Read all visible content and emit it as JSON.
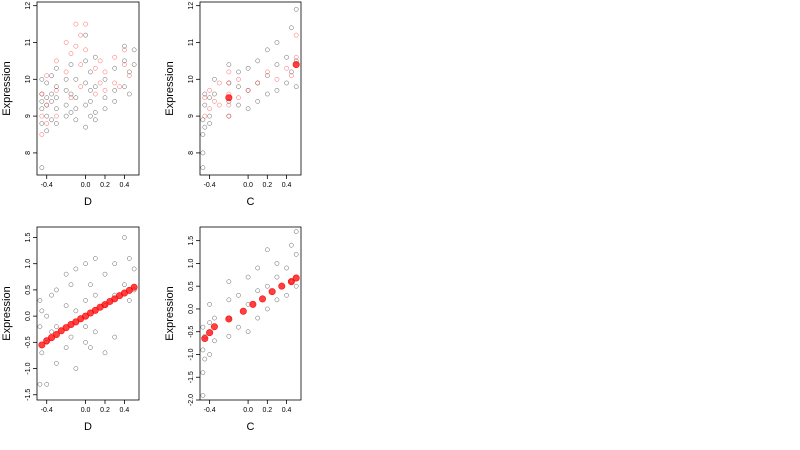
{
  "colors": {
    "points": "#000000",
    "highlight": "#ff0000",
    "background": "#ffffff"
  },
  "chart_data": [
    {
      "id": "top-left",
      "type": "scatter",
      "xlabel": "D",
      "ylabel": "Expression",
      "xlim": [
        -0.5,
        0.55
      ],
      "ylim": [
        7.4,
        12.1
      ],
      "xticks": [
        -0.4,
        0.0,
        0.2,
        0.4
      ],
      "xtick_labels": [
        "-0.4",
        "0.0",
        "0.2",
        "0.4"
      ],
      "yticks": [
        8,
        9,
        10,
        11,
        12
      ],
      "ytick_labels": [
        "8",
        "9",
        "10",
        "11",
        "12"
      ],
      "grid": false,
      "legend": "none",
      "series": [
        {
          "color": "#000000",
          "style": "hollow-circle",
          "x": [
            -0.45,
            -0.45,
            -0.45,
            -0.45,
            -0.45,
            -0.45,
            -0.4,
            -0.4,
            -0.4,
            -0.4,
            -0.4,
            -0.35,
            -0.35,
            -0.35,
            -0.35,
            -0.3,
            -0.3,
            -0.3,
            -0.3,
            -0.3,
            -0.2,
            -0.2,
            -0.2,
            -0.2,
            -0.15,
            -0.15,
            -0.15,
            -0.1,
            -0.1,
            -0.1,
            -0.1,
            0.0,
            0.0,
            0.0,
            0.0,
            0.0,
            0.05,
            0.05,
            0.05,
            0.05,
            0.1,
            0.1,
            0.1,
            0.1,
            0.2,
            0.2,
            0.2,
            0.3,
            0.3,
            0.3,
            0.4,
            0.4,
            0.4,
            0.45,
            0.45,
            0.5,
            0.5
          ],
          "y": [
            7.6,
            8.8,
            9.2,
            9.6,
            10.0,
            9.4,
            9.0,
            9.5,
            9.9,
            8.6,
            9.3,
            10.1,
            9.6,
            8.9,
            9.4,
            9.2,
            9.8,
            10.3,
            8.8,
            9.5,
            9.3,
            10.0,
            9.0,
            9.7,
            10.4,
            9.1,
            9.6,
            9.5,
            10.0,
            8.9,
            9.2,
            9.9,
            10.5,
            9.3,
            8.7,
            11.2,
            9.0,
            9.7,
            10.2,
            9.4,
            9.1,
            9.8,
            10.6,
            8.9,
            9.5,
            10.0,
            9.2,
            9.7,
            10.3,
            9.4,
            10.5,
            9.8,
            10.9,
            10.2,
            9.6,
            10.4,
            10.8
          ]
        },
        {
          "color": "#ff0000",
          "style": "hollow-circle",
          "x": [
            -0.45,
            -0.45,
            -0.45,
            -0.4,
            -0.4,
            -0.4,
            -0.3,
            -0.3,
            -0.3,
            -0.2,
            -0.2,
            -0.15,
            -0.15,
            -0.1,
            -0.1,
            -0.05,
            -0.05,
            -0.05,
            0.0,
            0.0,
            0.1,
            0.1,
            0.15,
            0.15,
            0.2,
            0.2,
            0.3,
            0.3,
            0.35,
            0.4,
            0.4,
            0.45
          ],
          "y": [
            8.5,
            9.0,
            9.6,
            9.3,
            10.1,
            8.8,
            9.7,
            10.5,
            9.0,
            10.2,
            11.0,
            9.5,
            10.7,
            10.9,
            11.5,
            10.4,
            11.2,
            9.8,
            10.8,
            11.5,
            9.6,
            10.3,
            9.9,
            10.5,
            9.7,
            10.2,
            9.9,
            10.6,
            9.8,
            10.4,
            10.8,
            10.1
          ]
        }
      ]
    },
    {
      "id": "top-right",
      "type": "scatter",
      "xlabel": "C",
      "ylabel": "Expression",
      "xlim": [
        -0.5,
        0.55
      ],
      "ylim": [
        7.4,
        12.1
      ],
      "xticks": [
        -0.4,
        0.0,
        0.2,
        0.4
      ],
      "xtick_labels": [
        "-0.4",
        "0.0",
        "0.2",
        "0.4"
      ],
      "yticks": [
        8,
        9,
        10,
        11,
        12
      ],
      "ytick_labels": [
        "8",
        "9",
        "10",
        "11",
        "12"
      ],
      "grid": false,
      "legend": "none",
      "series": [
        {
          "color": "#000000",
          "style": "hollow-circle",
          "x": [
            -0.47,
            -0.47,
            -0.47,
            -0.47,
            -0.45,
            -0.45,
            -0.45,
            -0.4,
            -0.4,
            -0.4,
            -0.35,
            -0.35,
            -0.2,
            -0.2,
            -0.2,
            -0.2,
            -0.1,
            -0.1,
            -0.1,
            0.0,
            0.0,
            0.0,
            0.1,
            0.1,
            0.1,
            0.2,
            0.2,
            0.2,
            0.3,
            0.3,
            0.3,
            0.4,
            0.4,
            0.45,
            0.45,
            0.5,
            0.5,
            0.5
          ],
          "y": [
            7.6,
            8.0,
            8.5,
            8.9,
            9.3,
            8.7,
            9.6,
            9.0,
            9.5,
            8.8,
            9.6,
            10.0,
            9.0,
            9.4,
            9.9,
            10.4,
            9.3,
            9.8,
            10.2,
            9.2,
            9.7,
            10.3,
            9.4,
            9.9,
            10.5,
            9.6,
            10.1,
            10.8,
            9.7,
            10.4,
            11.0,
            9.9,
            10.6,
            10.2,
            11.4,
            9.8,
            10.5,
            11.9
          ]
        },
        {
          "color": "#ff0000",
          "style": "hollow-circle",
          "x": [
            -0.45,
            -0.45,
            -0.4,
            -0.4,
            -0.35,
            -0.3,
            -0.3,
            -0.2,
            -0.2,
            -0.2,
            -0.2,
            -0.2,
            -0.1,
            -0.1,
            0.0,
            0.1,
            0.2,
            0.3,
            0.4,
            0.45,
            0.5,
            0.5
          ],
          "y": [
            9.0,
            9.5,
            9.2,
            9.7,
            9.4,
            9.3,
            9.9,
            9.0,
            9.3,
            9.6,
            9.9,
            10.2,
            9.5,
            10.0,
            9.7,
            9.9,
            10.2,
            10.0,
            10.3,
            10.1,
            10.6,
            11.2
          ]
        },
        {
          "color": "#ff0000",
          "style": "filled-circle",
          "x": [
            -0.2,
            0.5
          ],
          "y": [
            9.5,
            10.4
          ]
        }
      ]
    },
    {
      "id": "bottom-left",
      "type": "scatter",
      "xlabel": "D",
      "ylabel": "Expression",
      "xlim": [
        -0.5,
        0.55
      ],
      "ylim": [
        -1.6,
        1.7
      ],
      "xticks": [
        -0.4,
        0.0,
        0.2,
        0.4
      ],
      "xtick_labels": [
        "-0.4",
        "0.0",
        "0.2",
        "0.4"
      ],
      "yticks": [
        -1.5,
        -1.0,
        -0.5,
        0.0,
        0.5,
        1.0,
        1.5
      ],
      "ytick_labels": [
        "-1.5",
        "-1.0",
        "-0.5",
        "0.0",
        "0.5",
        "1.0",
        "1.5"
      ],
      "grid": false,
      "legend": "none",
      "series": [
        {
          "color": "#000000",
          "style": "hollow-circle",
          "x": [
            -0.47,
            -0.47,
            -0.47,
            -0.45,
            -0.45,
            -0.4,
            -0.4,
            -0.4,
            -0.35,
            -0.35,
            -0.3,
            -0.3,
            -0.3,
            -0.2,
            -0.2,
            -0.2,
            -0.15,
            -0.15,
            -0.1,
            -0.1,
            -0.1,
            0.0,
            0.0,
            0.0,
            0.0,
            0.05,
            0.05,
            0.1,
            0.1,
            0.1,
            0.2,
            0.2,
            0.2,
            0.3,
            0.3,
            0.3,
            0.4,
            0.4,
            0.45,
            0.45,
            0.5,
            0.5
          ],
          "y": [
            -1.3,
            -0.2,
            0.3,
            -0.7,
            0.1,
            -1.3,
            -0.5,
            0.0,
            -0.3,
            0.4,
            -0.9,
            -0.2,
            0.5,
            -0.6,
            0.2,
            0.8,
            -0.4,
            0.6,
            -1.0,
            0.1,
            0.9,
            -0.5,
            0.3,
            1.0,
            -0.2,
            0.6,
            -0.6,
            -0.3,
            0.4,
            1.1,
            0.2,
            0.8,
            -0.7,
            0.4,
            1.0,
            -0.4,
            0.6,
            1.5,
            0.3,
            1.1,
            0.5,
            0.9
          ]
        },
        {
          "color": "#ff0000",
          "style": "filled-circle",
          "x": [
            -0.45,
            -0.4,
            -0.35,
            -0.3,
            -0.25,
            -0.2,
            -0.15,
            -0.1,
            -0.05,
            0.0,
            0.05,
            0.1,
            0.15,
            0.2,
            0.25,
            0.3,
            0.35,
            0.4,
            0.45,
            0.5
          ],
          "y": [
            -0.55,
            -0.47,
            -0.41,
            -0.35,
            -0.28,
            -0.22,
            -0.16,
            -0.11,
            -0.05,
            0.0,
            0.06,
            0.11,
            0.17,
            0.22,
            0.28,
            0.33,
            0.39,
            0.44,
            0.49,
            0.55
          ]
        }
      ]
    },
    {
      "id": "bottom-right",
      "type": "scatter",
      "xlabel": "C",
      "ylabel": "Expression",
      "xlim": [
        -0.5,
        0.55
      ],
      "ylim": [
        -2.0,
        1.8
      ],
      "xticks": [
        -0.4,
        0.0,
        0.2,
        0.4
      ],
      "xtick_labels": [
        "-0.4",
        "0.0",
        "0.2",
        "0.4"
      ],
      "yticks": [
        -2.0,
        -1.5,
        -1.0,
        -0.5,
        0.0,
        0.5,
        1.0,
        1.5
      ],
      "ytick_labels": [
        "-2.0",
        "-1.5",
        "-1.0",
        "-0.5",
        "0.0",
        "0.5",
        "1.0",
        "1.5"
      ],
      "grid": false,
      "legend": "none",
      "series": [
        {
          "color": "#000000",
          "style": "hollow-circle",
          "x": [
            -0.47,
            -0.47,
            -0.47,
            -0.47,
            -0.45,
            -0.45,
            -0.4,
            -0.4,
            -0.4,
            -0.35,
            -0.35,
            -0.2,
            -0.2,
            -0.2,
            -0.2,
            -0.1,
            -0.1,
            0.0,
            0.0,
            0.0,
            0.1,
            0.1,
            0.1,
            0.2,
            0.2,
            0.2,
            0.3,
            0.3,
            0.3,
            0.4,
            0.4,
            0.45,
            0.45,
            0.5,
            0.5,
            0.5
          ],
          "y": [
            -1.9,
            -1.4,
            -0.9,
            -0.4,
            -1.1,
            -0.6,
            -1.0,
            -0.3,
            0.1,
            -0.7,
            -0.2,
            -0.6,
            -0.2,
            0.2,
            0.6,
            -0.4,
            0.3,
            -0.5,
            0.1,
            0.7,
            -0.2,
            0.4,
            0.9,
            0.0,
            0.5,
            1.3,
            0.2,
            0.7,
            1.0,
            0.3,
            0.9,
            0.6,
            1.4,
            0.5,
            1.2,
            1.7
          ]
        },
        {
          "color": "#ff0000",
          "style": "filled-circle",
          "x": [
            -0.45,
            -0.4,
            -0.35,
            -0.2,
            -0.05,
            0.05,
            0.15,
            0.25,
            0.35,
            0.45,
            0.5
          ],
          "y": [
            -0.65,
            -0.52,
            -0.39,
            -0.22,
            -0.05,
            0.1,
            0.22,
            0.38,
            0.5,
            0.6,
            0.68
          ]
        }
      ]
    }
  ]
}
